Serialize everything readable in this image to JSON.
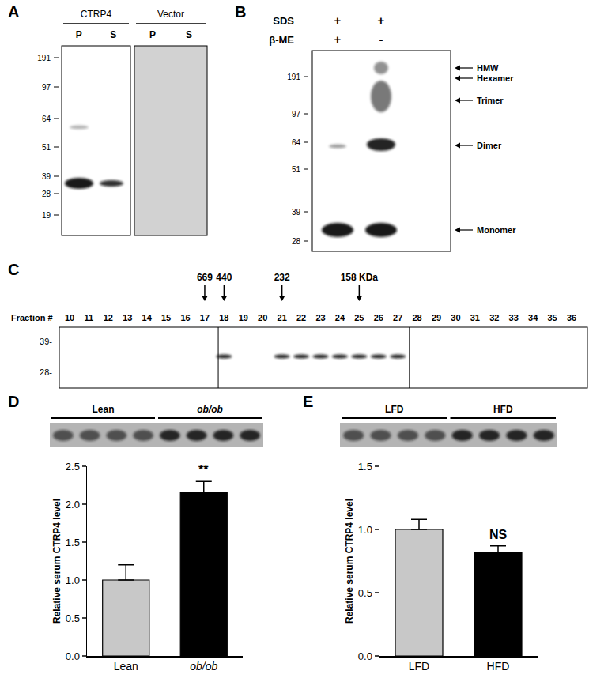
{
  "panels": {
    "A": {
      "label": "A",
      "groups": [
        {
          "name": "CTRP4",
          "lanes": [
            "P",
            "S"
          ]
        },
        {
          "name": "Vector",
          "lanes": [
            "P",
            "S"
          ]
        }
      ],
      "markers": [
        191,
        97,
        64,
        51,
        39,
        28,
        19
      ]
    },
    "B": {
      "label": "B",
      "rows": [
        {
          "name": "SDS",
          "lanes": [
            "+",
            "+"
          ]
        },
        {
          "name": "β-ME",
          "lanes": [
            "+",
            "-"
          ]
        }
      ],
      "markers": [
        191,
        97,
        64,
        51,
        39,
        28
      ],
      "species": [
        "HMW",
        "Hexamer",
        "Trimer",
        "Dimer",
        "Monomer"
      ]
    },
    "C": {
      "label": "C",
      "fraction_label": "Fraction #",
      "fractions": [
        10,
        11,
        12,
        13,
        14,
        15,
        16,
        17,
        18,
        19,
        20,
        21,
        22,
        23,
        24,
        25,
        26,
        27,
        28,
        29,
        30,
        31,
        32,
        33,
        34,
        35,
        36
      ],
      "size_standards": [
        {
          "label": "669",
          "fraction": 17
        },
        {
          "label": "440",
          "fraction": 18
        },
        {
          "label": "232",
          "fraction": 21
        },
        {
          "label": "158 KDa",
          "fraction": 25
        }
      ],
      "bands": [
        18,
        21,
        22,
        23,
        24,
        25,
        26,
        27
      ],
      "markers": [
        39,
        28
      ]
    }
  },
  "chart_data": [
    {
      "panel": "D",
      "type": "bar",
      "blot_groups": [
        {
          "label": "Lean",
          "lanes": 4
        },
        {
          "label": "ob/ob",
          "lanes": 4
        }
      ],
      "categories": [
        "Lean",
        "ob/ob"
      ],
      "values": [
        1.0,
        2.15
      ],
      "errors": [
        0.2,
        0.15
      ],
      "colors": [
        "#c8c8c8",
        "#000000"
      ],
      "y_label": "Relative serum CTRP4 level",
      "ylim": [
        0,
        2.5
      ],
      "yticks": [
        {
          "value": 0,
          "label": "0.0"
        },
        0.5,
        {
          "value": 1,
          "label": "1.0"
        },
        1.5,
        {
          "value": 2,
          "label": "2.0"
        },
        2.5
      ],
      "annotations": [
        {
          "category": "ob/ob",
          "text": "**"
        }
      ],
      "grid": false
    },
    {
      "panel": "E",
      "type": "bar",
      "blot_groups": [
        {
          "label": "LFD",
          "lanes": 4
        },
        {
          "label": "HFD",
          "lanes": 4
        }
      ],
      "categories": [
        "LFD",
        "HFD"
      ],
      "values": [
        1.0,
        0.82
      ],
      "errors": [
        0.08,
        0.05
      ],
      "colors": [
        "#c8c8c8",
        "#000000"
      ],
      "y_label": "Relative serum CTRP4 level",
      "ylim": [
        0,
        1.5
      ],
      "yticks": [
        {
          "value": 0,
          "label": "0.0"
        },
        0.5,
        {
          "value": 1,
          "label": "1.0"
        },
        1.5
      ],
      "annotations": [
        {
          "category": "HFD",
          "text": "NS"
        }
      ],
      "grid": false
    }
  ]
}
